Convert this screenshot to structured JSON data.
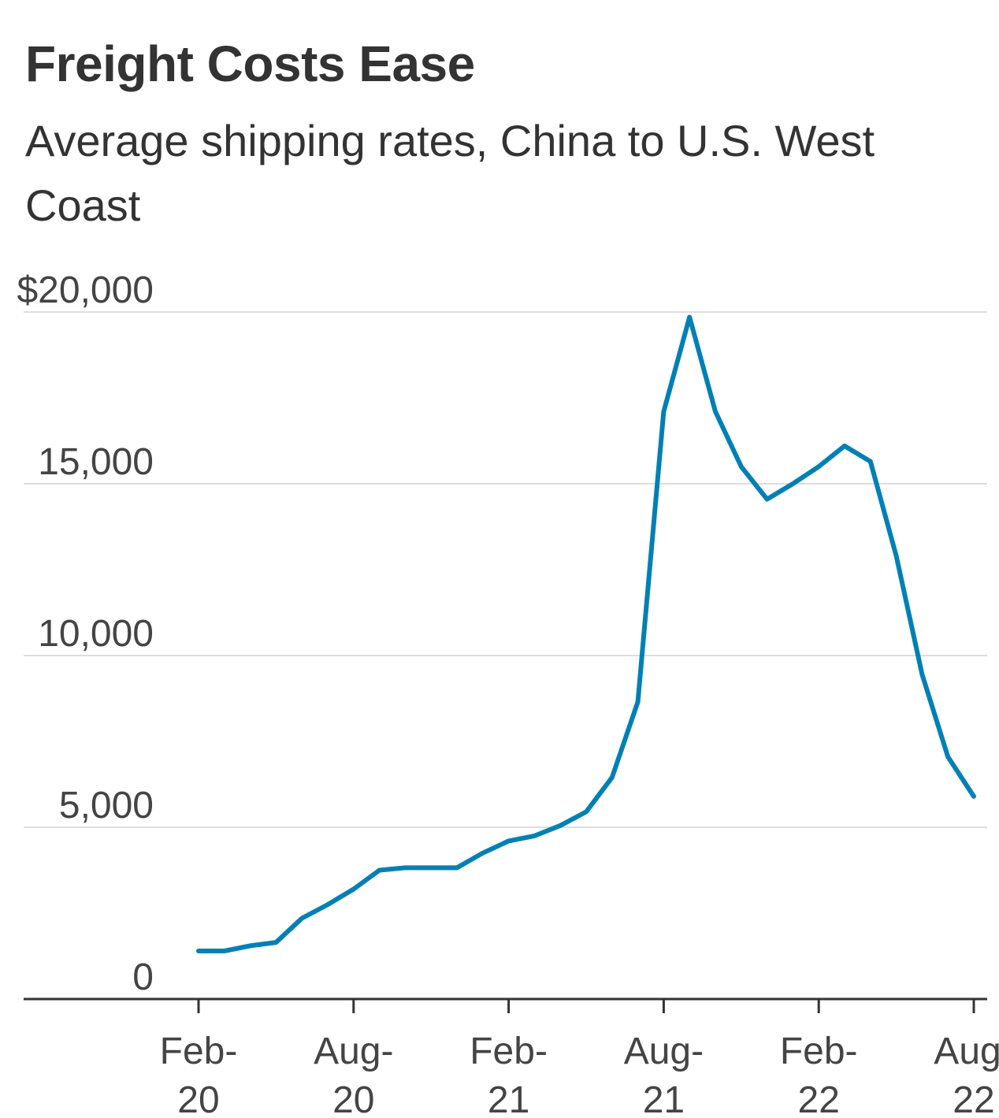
{
  "title": "Freight Costs Ease",
  "subtitle": "Average shipping rates, China to U.S. West Coast",
  "chart_data": {
    "type": "line",
    "title": "Freight Costs Ease",
    "subtitle": "Average shipping rates, China to U.S. West Coast",
    "xlabel": "",
    "ylabel": "",
    "ylim": [
      0,
      20000
    ],
    "y_ticks": [
      {
        "value": 0,
        "label": "0"
      },
      {
        "value": 5000,
        "label": "5,000"
      },
      {
        "value": 10000,
        "label": "10,000"
      },
      {
        "value": 15000,
        "label": "15,000"
      },
      {
        "value": 20000,
        "label": "$20,000"
      }
    ],
    "x_ticks": [
      {
        "month_index": 0,
        "line1": "Feb-",
        "line2": "20"
      },
      {
        "month_index": 6,
        "line1": "Aug-",
        "line2": "20"
      },
      {
        "month_index": 12,
        "line1": "Feb-",
        "line2": "21"
      },
      {
        "month_index": 18,
        "line1": "Aug-",
        "line2": "21"
      },
      {
        "month_index": 24,
        "line1": "Feb-",
        "line2": "22"
      },
      {
        "month_index": 30,
        "line1": "Aug-",
        "line2": "22"
      }
    ],
    "grid": true,
    "line_color": "#0080b4",
    "series": [
      {
        "x": [
          "Feb-20",
          "Mar-20",
          "Apr-20",
          "May-20",
          "Jun-20",
          "Jul-20",
          "Aug-20",
          "Sep-20",
          "Oct-20",
          "Nov-20",
          "Dec-20",
          "Jan-21",
          "Feb-21",
          "Mar-21",
          "Apr-21",
          "May-21",
          "Jun-21",
          "Jul-21",
          "Aug-21",
          "Sep-21",
          "Oct-21",
          "Nov-21",
          "Dec-21",
          "Jan-22",
          "Feb-22",
          "Mar-22",
          "Apr-22",
          "May-22",
          "Jun-22",
          "Jul-22",
          "Aug-22"
        ],
        "values": [
          1400,
          1400,
          1550,
          1650,
          2350,
          2750,
          3200,
          3750,
          3820,
          3820,
          3820,
          4250,
          4600,
          4750,
          5050,
          5450,
          6450,
          8650,
          17100,
          19850,
          17100,
          15500,
          14550,
          15000,
          15500,
          16100,
          15650,
          12900,
          9450,
          7050,
          5900
        ]
      }
    ]
  }
}
